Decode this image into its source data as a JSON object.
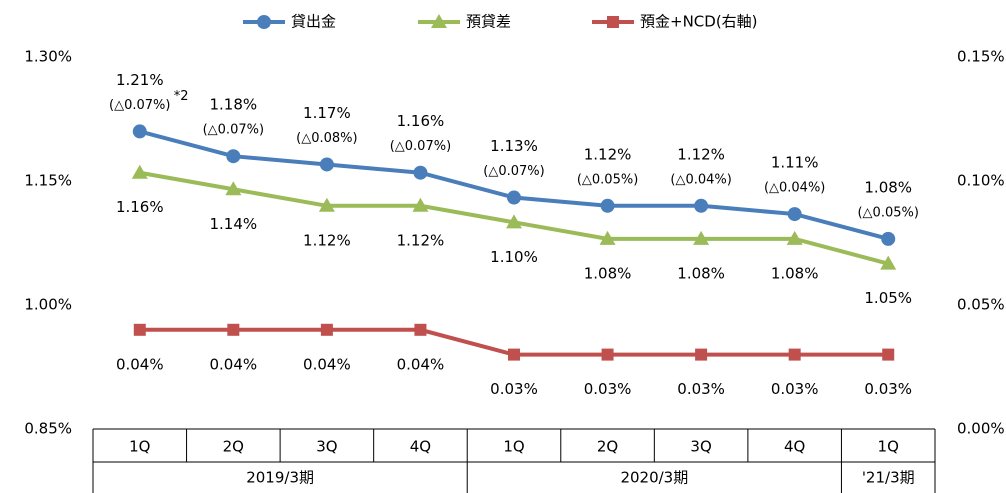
{
  "chart_data": {
    "type": "line",
    "category_groups": [
      {
        "name": "2019/3期",
        "categories": [
          "1Q",
          "2Q",
          "3Q",
          "4Q"
        ]
      },
      {
        "name": "2020/3期",
        "categories": [
          "1Q",
          "2Q",
          "3Q",
          "4Q"
        ]
      },
      {
        "name": "'21/3期",
        "categories": [
          "1Q"
        ]
      }
    ],
    "series": [
      {
        "name": "貸出金",
        "color": "#4a7ebb",
        "marker": "circle",
        "label_position": "above",
        "values": [
          1.21,
          1.18,
          1.17,
          1.16,
          1.13,
          1.12,
          1.12,
          1.11,
          1.08
        ],
        "value_labels": [
          "1.21%",
          "1.18%",
          "1.17%",
          "1.16%",
          "1.13%",
          "1.12%",
          "1.12%",
          "1.11%",
          "1.08%"
        ],
        "change_labels": [
          "(△0.07%)",
          "(△0.07%)",
          "(△0.08%)",
          "(△0.07%)",
          "(△0.07%)",
          "(△0.05%)",
          "(△0.04%)",
          "(△0.04%)",
          "(△0.05%)"
        ],
        "note_mark": "*2"
      },
      {
        "name": "預貸差",
        "color": "#9bbb59",
        "marker": "triangle",
        "label_position": "below",
        "values": [
          1.16,
          1.14,
          1.12,
          1.12,
          1.1,
          1.08,
          1.08,
          1.08,
          1.05
        ],
        "value_labels": [
          "1.16%",
          "1.14%",
          "1.12%",
          "1.12%",
          "1.10%",
          "1.08%",
          "1.08%",
          "1.08%",
          "1.05%"
        ]
      },
      {
        "name": "預金+NCD(右軸)",
        "color": "#c0504d",
        "marker": "square",
        "label_position": "below",
        "axis": "y2",
        "values": [
          0.04,
          0.04,
          0.04,
          0.04,
          0.03,
          0.03,
          0.03,
          0.03,
          0.03
        ],
        "value_labels": [
          "0.04%",
          "0.04%",
          "0.04%",
          "0.04%",
          "0.03%",
          "0.03%",
          "0.03%",
          "0.03%",
          "0.03%"
        ]
      }
    ],
    "ylim": [
      0.85,
      1.3
    ],
    "yticks": [
      {
        "value": 0.85,
        "label": "0.85%"
      },
      {
        "value": 1.0,
        "label": "1.00%"
      },
      {
        "value": 1.15,
        "label": "1.15%"
      },
      {
        "value": 1.3,
        "label": "1.30%"
      }
    ],
    "y2lim": [
      0,
      0.15
    ],
    "y2ticks": [
      {
        "value": 0,
        "label": "0.00%"
      },
      {
        "value": 0.05,
        "label": "0.05%"
      },
      {
        "value": 0.1,
        "label": "0.10%"
      },
      {
        "value": 0.15,
        "label": "0.15%"
      }
    ],
    "legend": "top"
  }
}
